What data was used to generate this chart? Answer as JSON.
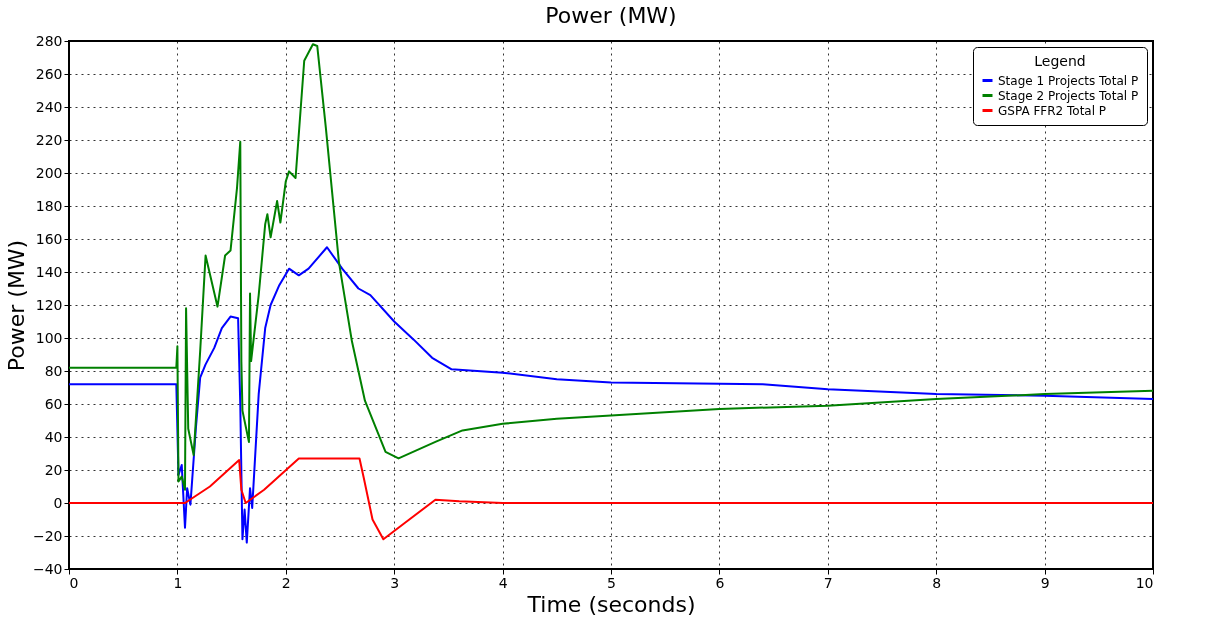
{
  "chart_data": {
    "type": "line",
    "title": "Power (MW)",
    "xlabel": "Time (seconds)",
    "ylabel": "Power (MW)",
    "legend_title": "Legend",
    "legend": "top right",
    "grid": true,
    "line_style": "solid",
    "xlim": [
      0,
      10
    ],
    "xticks": [
      0,
      1,
      2,
      3,
      4,
      5,
      6,
      7,
      8,
      9,
      10
    ],
    "ylim": [
      -40,
      280
    ],
    "yticks": [
      -40,
      -20,
      0,
      20,
      40,
      60,
      80,
      100,
      120,
      140,
      160,
      180,
      200,
      220,
      240,
      260,
      280
    ],
    "series": [
      {
        "name": "Stage 1 Projects Total P",
        "color": "#0000ff",
        "x": [
          0,
          0.99,
          1.01,
          1.04,
          1.07,
          1.09,
          1.12,
          1.17,
          1.21,
          1.26,
          1.34,
          1.41,
          1.49,
          1.56,
          1.58,
          1.6,
          1.62,
          1.64,
          1.67,
          1.69,
          1.75,
          1.81,
          1.86,
          1.94,
          2.03,
          2.12,
          2.21,
          2.38,
          2.52,
          2.67,
          2.78,
          3.0,
          3.18,
          3.35,
          3.53,
          4.0,
          4.5,
          5.0,
          6.4,
          7.0,
          8.0,
          9.0,
          10.0
        ],
        "values": [
          72,
          72,
          17,
          23,
          -15,
          9,
          -1,
          45,
          76,
          84,
          94,
          106,
          113,
          112,
          60,
          -22,
          -4,
          -24,
          9,
          -3,
          66,
          106,
          120,
          132,
          142,
          138,
          142,
          155,
          142,
          130,
          126,
          110,
          99,
          88,
          81,
          79,
          75,
          73,
          72,
          69,
          66,
          65,
          63
        ]
      },
      {
        "name": "Stage 2 Projects Total P",
        "color": "#008000",
        "x": [
          0,
          0.99,
          1.0,
          1.01,
          1.04,
          1.07,
          1.08,
          1.1,
          1.15,
          1.21,
          1.26,
          1.37,
          1.44,
          1.49,
          1.55,
          1.58,
          1.59,
          1.6,
          1.66,
          1.67,
          1.68,
          1.75,
          1.81,
          1.83,
          1.86,
          1.92,
          1.95,
          2.0,
          2.03,
          2.09,
          2.17,
          2.25,
          2.29,
          2.37,
          2.49,
          2.61,
          2.73,
          2.92,
          3.04,
          3.38,
          3.63,
          4.0,
          4.5,
          5.0,
          6.0,
          7.0,
          8.0,
          9.0,
          10.0
        ],
        "values": [
          82,
          82,
          95,
          13,
          16,
          8,
          118,
          45,
          29,
          92,
          150,
          119,
          150,
          153,
          191,
          219,
          86,
          56,
          37,
          127,
          86,
          126,
          169,
          175,
          161,
          183,
          170,
          195,
          201,
          197,
          268,
          278,
          277,
          227,
          146,
          98,
          62,
          31,
          27,
          37,
          44,
          48,
          51,
          53,
          57,
          59,
          63,
          66,
          68
        ]
      },
      {
        "name": "GSPA FFR2 Total P",
        "color": "#ff0000",
        "x": [
          0,
          1.07,
          1.3,
          1.57,
          1.59,
          1.63,
          1.8,
          2.12,
          2.4,
          2.68,
          2.72,
          2.8,
          2.9,
          3.1,
          3.38,
          3.6,
          4.0,
          10.0
        ],
        "values": [
          0,
          0,
          10,
          26,
          8,
          0,
          8,
          27,
          27,
          27,
          15,
          -10,
          -22,
          -12,
          2,
          1,
          0,
          0
        ]
      }
    ]
  }
}
